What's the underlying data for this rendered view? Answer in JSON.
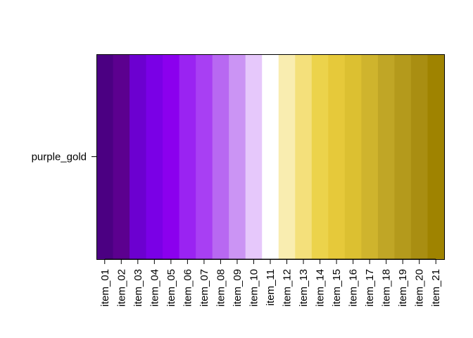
{
  "chart_data": {
    "type": "heatmap",
    "rows": [
      "purple_gold"
    ],
    "columns": [
      "item_01",
      "item_02",
      "item_03",
      "item_04",
      "item_05",
      "item_06",
      "item_07",
      "item_08",
      "item_09",
      "item_10",
      "item_11",
      "item_12",
      "item_13",
      "item_14",
      "item_15",
      "item_16",
      "item_17",
      "item_18",
      "item_19",
      "item_20",
      "item_21"
    ],
    "colors": [
      "#4b0082",
      "#5c008f",
      "#6c00d0",
      "#7a00e6",
      "#8b00ee",
      "#9a23f2",
      "#a83ff3",
      "#b868f2",
      "#cb94f4",
      "#e6c8fb",
      "#ffffff",
      "#f9edb0",
      "#f4e07b",
      "#ecd34b",
      "#e6c93a",
      "#dcc031",
      "#cfb42d",
      "#c0a626",
      "#b49a1c",
      "#a98e12",
      "#9f8300"
    ],
    "grid": false,
    "legend": "none"
  }
}
